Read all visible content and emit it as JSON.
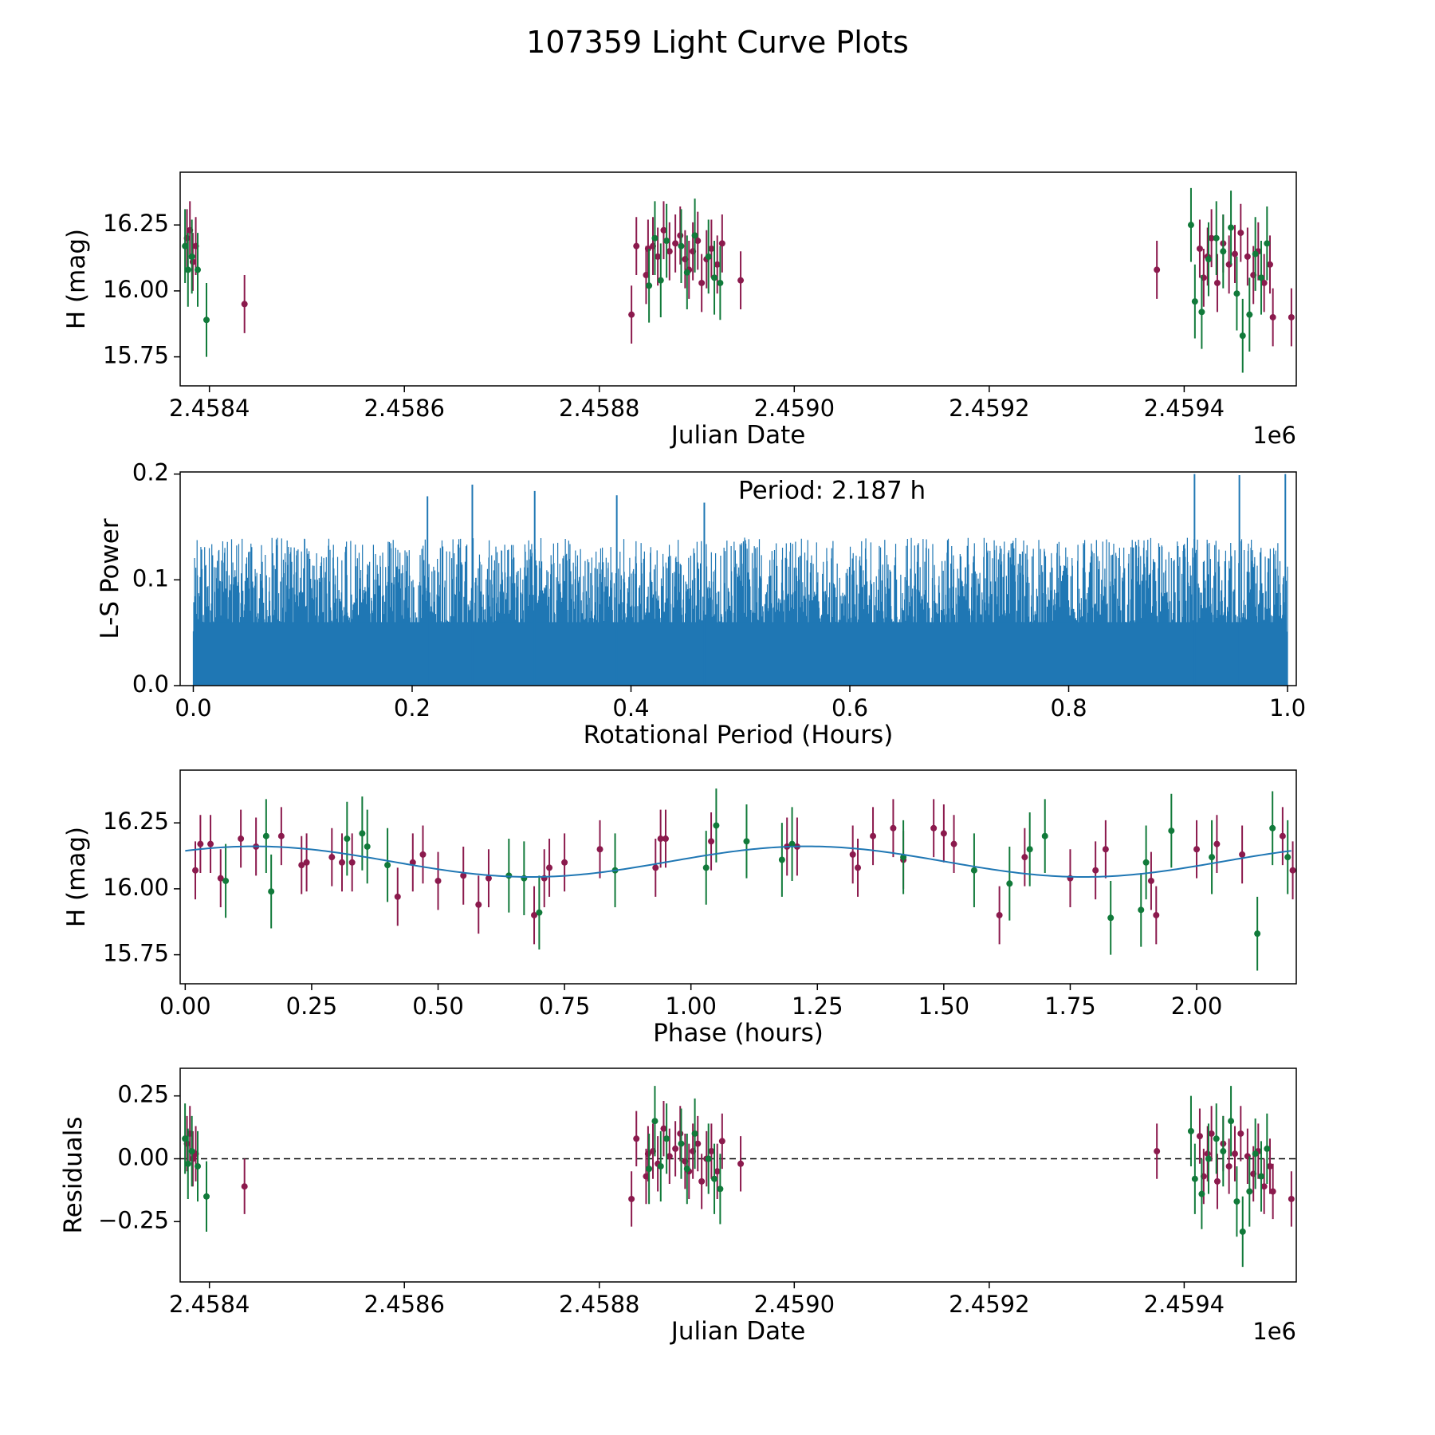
{
  "figure": {
    "title": "107359 Light Curve Plots",
    "colors": {
      "magenta": "#8b1a4d",
      "green": "#117a3a",
      "line": "#1f77b4",
      "frame": "#000000"
    }
  },
  "chart_data": [
    {
      "id": "lightcurve",
      "type": "scatter",
      "xlabel": "Julian Date",
      "ylabel": "H (mag)",
      "offset_text": "1e6",
      "xlim": [
        2458370,
        2459515
      ],
      "ylim": [
        15.64,
        16.45
      ],
      "xticks": [
        2458400,
        2458600,
        2458800,
        2459000,
        2459200,
        2459400
      ],
      "xtick_labels": [
        "2.4584",
        "2.4586",
        "2.4588",
        "2.4590",
        "2.4592",
        "2.4594"
      ],
      "yticks": [
        15.75,
        16.0,
        16.25
      ],
      "ytick_labels": [
        "15.75",
        "16.00",
        "16.25"
      ],
      "series": [
        {
          "name": "magenta",
          "color": "#8b1a4d",
          "err": 0.11,
          "x": [
            2458377,
            2458380,
            2458383,
            2458386,
            2458436,
            2458833,
            2458838,
            2458848,
            2458850,
            2458855,
            2458860,
            2458866,
            2458872,
            2458878,
            2458883,
            2458888,
            2458892,
            2458896,
            2458901,
            2458905,
            2458910,
            2458915,
            2458921,
            2458926,
            2458945,
            2459372,
            2459416,
            2459420,
            2459424,
            2459428,
            2459434,
            2459440,
            2459446,
            2459452,
            2459458,
            2459465,
            2459471,
            2459476,
            2459482,
            2459488,
            2459491,
            2459510
          ],
          "y": [
            16.2,
            16.23,
            16.11,
            16.17,
            15.95,
            15.91,
            16.17,
            16.06,
            16.16,
            16.17,
            16.13,
            16.23,
            16.15,
            16.18,
            16.21,
            16.12,
            16.08,
            16.15,
            16.19,
            16.03,
            16.12,
            16.16,
            16.1,
            16.18,
            16.04,
            16.08,
            16.16,
            16.05,
            16.13,
            16.2,
            16.03,
            16.18,
            16.1,
            16.14,
            16.22,
            16.13,
            16.06,
            16.15,
            16.03,
            16.1,
            15.9,
            15.9
          ]
        },
        {
          "name": "green",
          "color": "#117a3a",
          "err": 0.14,
          "x": [
            2458375,
            2458378,
            2458382,
            2458388,
            2458397,
            2458851,
            2458857,
            2458863,
            2458869,
            2458884,
            2458890,
            2458898,
            2458912,
            2458918,
            2458924,
            2459407,
            2459411,
            2459418,
            2459425,
            2459433,
            2459440,
            2459448,
            2459454,
            2459460,
            2459467,
            2459473,
            2459479,
            2459485
          ],
          "y": [
            16.17,
            16.08,
            16.13,
            16.08,
            15.89,
            16.02,
            16.2,
            16.04,
            16.19,
            16.17,
            16.07,
            16.21,
            16.13,
            16.05,
            16.03,
            16.25,
            15.96,
            15.92,
            16.12,
            16.2,
            16.15,
            16.24,
            15.99,
            15.83,
            15.91,
            16.14,
            16.05,
            16.18
          ]
        }
      ]
    },
    {
      "id": "periodogram",
      "type": "line",
      "xlabel": "Rotational Period (Hours)",
      "ylabel": "L-S Power",
      "annotation": "Period: 2.187 h",
      "xlim": [
        -0.012,
        1.008
      ],
      "ylim": [
        0,
        0.202
      ],
      "xticks": [
        0.0,
        0.2,
        0.4,
        0.6,
        0.8,
        1.0
      ],
      "xtick_labels": [
        "0.0",
        "0.2",
        "0.4",
        "0.6",
        "0.8",
        "1.0"
      ],
      "yticks": [
        0.0,
        0.1,
        0.2
      ],
      "ytick_labels": [
        "0.0",
        "0.1",
        "0.2"
      ],
      "x_range": [
        0.0,
        1.0
      ],
      "typical_peak_power": [
        0.05,
        0.14
      ],
      "max_power": 0.2,
      "strongest_peaks": [
        {
          "x": 0.214,
          "y": 0.179
        },
        {
          "x": 0.255,
          "y": 0.19
        },
        {
          "x": 0.312,
          "y": 0.184
        },
        {
          "x": 0.387,
          "y": 0.18
        },
        {
          "x": 0.467,
          "y": 0.173
        },
        {
          "x": 0.915,
          "y": 0.2
        },
        {
          "x": 0.956,
          "y": 0.199
        },
        {
          "x": 0.998,
          "y": 0.2
        }
      ]
    },
    {
      "id": "phased",
      "type": "scatter",
      "xlabel": "Phase (hours)",
      "ylabel": "H (mag)",
      "xlim": [
        -0.01,
        2.197
      ],
      "ylim": [
        15.64,
        16.45
      ],
      "xticks": [
        0.0,
        0.25,
        0.5,
        0.75,
        1.0,
        1.25,
        1.5,
        1.75,
        2.0
      ],
      "xtick_labels": [
        "0.00",
        "0.25",
        "0.50",
        "0.75",
        "1.00",
        "1.25",
        "1.50",
        "1.75",
        "2.00"
      ],
      "yticks": [
        15.75,
        16.0,
        16.25
      ],
      "ytick_labels": [
        "15.75",
        "16.00",
        "16.25"
      ],
      "model": {
        "mean": 16.103,
        "amplitude": 0.058,
        "period": 1.0935,
        "peak_phase": 1.23
      },
      "series": [
        {
          "name": "magenta",
          "color": "#8b1a4d",
          "err": 0.11,
          "x": [
            0.02,
            0.03,
            0.05,
            0.07,
            0.11,
            0.14,
            0.19,
            0.23,
            0.24,
            0.29,
            0.31,
            0.33,
            0.42,
            0.45,
            0.47,
            0.5,
            0.55,
            0.58,
            0.6,
            0.69,
            0.71,
            0.72,
            0.75,
            0.82,
            0.93,
            0.94,
            0.95,
            1.04,
            1.19,
            1.21,
            1.32,
            1.33,
            1.36,
            1.4,
            1.42,
            1.48,
            1.5,
            1.52,
            1.61,
            1.66,
            1.75,
            1.8,
            1.82,
            1.91,
            1.92,
            2.0,
            2.04,
            2.09,
            2.17,
            2.19
          ],
          "y": [
            16.07,
            16.17,
            16.17,
            16.04,
            16.19,
            16.16,
            16.2,
            16.09,
            16.1,
            16.12,
            16.1,
            16.1,
            15.97,
            16.1,
            16.13,
            16.03,
            16.05,
            15.94,
            16.04,
            15.9,
            16.04,
            16.08,
            16.1,
            16.15,
            16.08,
            16.19,
            16.19,
            16.18,
            16.16,
            16.16,
            16.13,
            16.08,
            16.2,
            16.23,
            16.11,
            16.23,
            16.21,
            16.17,
            15.9,
            16.12,
            16.04,
            16.07,
            16.15,
            16.03,
            15.9,
            16.15,
            16.17,
            16.13,
            16.2,
            16.07
          ]
        },
        {
          "name": "green",
          "color": "#117a3a",
          "err": 0.14,
          "x": [
            0.08,
            0.16,
            0.17,
            0.32,
            0.35,
            0.36,
            0.4,
            0.64,
            0.67,
            0.7,
            0.85,
            1.03,
            1.05,
            1.11,
            1.18,
            1.2,
            1.42,
            1.56,
            1.63,
            1.67,
            1.7,
            1.83,
            1.89,
            1.9,
            1.95,
            2.03,
            2.12,
            2.15,
            2.18
          ],
          "y": [
            16.03,
            16.2,
            15.99,
            16.19,
            16.21,
            16.16,
            16.09,
            16.05,
            16.04,
            15.91,
            16.07,
            16.08,
            16.24,
            16.18,
            16.11,
            16.17,
            16.12,
            16.07,
            16.02,
            16.15,
            16.2,
            15.89,
            15.92,
            16.1,
            16.22,
            16.12,
            15.83,
            16.23,
            16.12
          ]
        }
      ]
    },
    {
      "id": "residuals",
      "type": "scatter",
      "xlabel": "Julian Date",
      "ylabel": "Residuals",
      "offset_text": "1e6",
      "xlim": [
        2458370,
        2459515
      ],
      "ylim": [
        -0.49,
        0.36
      ],
      "xticks": [
        2458400,
        2458600,
        2458800,
        2459000,
        2459200,
        2459400
      ],
      "xtick_labels": [
        "2.4584",
        "2.4586",
        "2.4588",
        "2.4590",
        "2.4592",
        "2.4594"
      ],
      "yticks": [
        -0.25,
        0.0,
        0.25
      ],
      "ytick_labels": [
        "−0.25",
        "0.00",
        "0.25"
      ],
      "zero_line": 0,
      "series": [
        {
          "name": "magenta",
          "color": "#8b1a4d",
          "err": 0.11,
          "x": [
            2458377,
            2458380,
            2458383,
            2458386,
            2458436,
            2458833,
            2458838,
            2458848,
            2458850,
            2458855,
            2458860,
            2458866,
            2458872,
            2458878,
            2458883,
            2458888,
            2458892,
            2458896,
            2458901,
            2458905,
            2458910,
            2458915,
            2458921,
            2458926,
            2458945,
            2459372,
            2459416,
            2459420,
            2459424,
            2459428,
            2459434,
            2459440,
            2459446,
            2459452,
            2459458,
            2459465,
            2459471,
            2459476,
            2459482,
            2459488,
            2459491,
            2459510
          ],
          "y": [
            0.06,
            0.1,
            0.0,
            0.02,
            -0.11,
            -0.16,
            0.08,
            -0.07,
            0.02,
            0.03,
            -0.02,
            0.12,
            0.01,
            0.04,
            0.1,
            -0.01,
            -0.05,
            0.03,
            0.06,
            -0.09,
            0.0,
            0.03,
            -0.05,
            0.07,
            -0.02,
            0.03,
            0.09,
            -0.07,
            0.02,
            0.1,
            -0.09,
            0.06,
            -0.03,
            0.02,
            0.1,
            0.01,
            -0.06,
            0.03,
            -0.11,
            -0.03,
            -0.13,
            -0.16
          ]
        },
        {
          "name": "green",
          "color": "#117a3a",
          "err": 0.14,
          "x": [
            2458375,
            2458378,
            2458382,
            2458388,
            2458397,
            2458851,
            2458857,
            2458863,
            2458869,
            2458884,
            2458890,
            2458898,
            2458912,
            2458918,
            2458924,
            2459407,
            2459411,
            2459418,
            2459425,
            2459433,
            2459440,
            2459448,
            2459454,
            2459460,
            2459467,
            2459473,
            2459479,
            2459485
          ],
          "y": [
            0.08,
            -0.02,
            0.03,
            -0.03,
            -0.15,
            -0.04,
            0.15,
            -0.03,
            0.08,
            0.06,
            -0.04,
            0.1,
            0.0,
            -0.08,
            -0.12,
            0.11,
            -0.08,
            -0.14,
            0.0,
            0.08,
            0.03,
            0.15,
            -0.17,
            -0.29,
            -0.13,
            0.02,
            -0.07,
            0.04
          ]
        }
      ]
    }
  ]
}
